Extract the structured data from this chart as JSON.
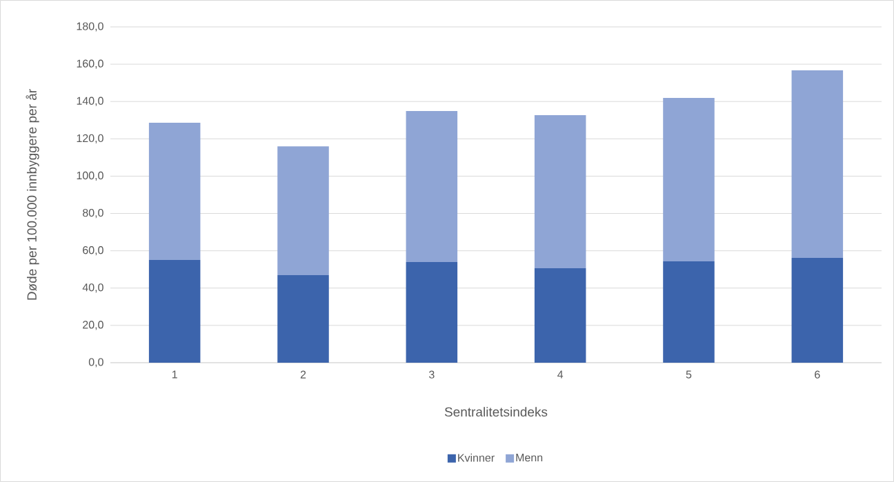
{
  "chart_data": {
    "type": "bar",
    "stacked": true,
    "xlabel": "Sentralitetsindeks",
    "ylabel": "Døde per 100.000 innbyggere per år",
    "categories": [
      "1",
      "2",
      "3",
      "4",
      "5",
      "6"
    ],
    "series": [
      {
        "name": "Kvinner",
        "color": "#3c64ac",
        "values": [
          55.1,
          46.9,
          54.0,
          50.6,
          54.3,
          56.2
        ]
      },
      {
        "name": "Menn",
        "color": "#8fa5d5",
        "values": [
          73.5,
          69.1,
          80.9,
          82.1,
          87.6,
          100.5
        ]
      }
    ],
    "ylim": [
      0,
      180
    ],
    "yticks": [
      {
        "value": 0,
        "label": "0,0"
      },
      {
        "value": 20,
        "label": "20,0"
      },
      {
        "value": 40,
        "label": "40,0"
      },
      {
        "value": 60,
        "label": "60,0"
      },
      {
        "value": 80,
        "label": "80,0"
      },
      {
        "value": 100,
        "label": "100,0"
      },
      {
        "value": 120,
        "label": "120,0"
      },
      {
        "value": 140,
        "label": "140,0"
      },
      {
        "value": 160,
        "label": "160,0"
      },
      {
        "value": 180,
        "label": "180,0"
      }
    ],
    "grid": "y",
    "legend": "bottom"
  }
}
